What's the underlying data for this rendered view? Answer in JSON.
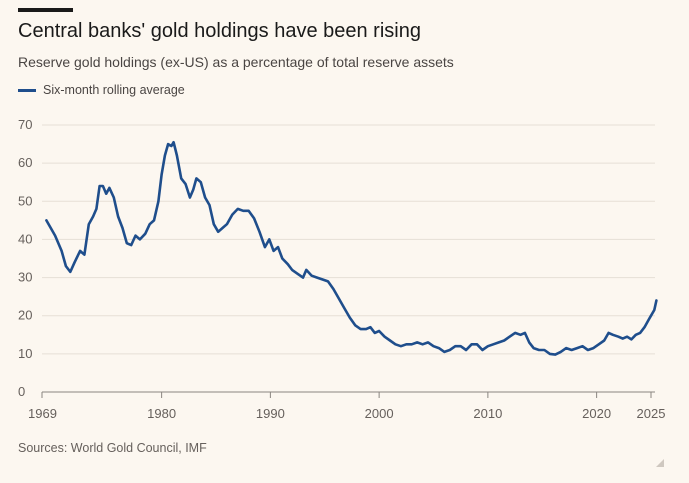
{
  "header": {
    "title": "Central banks' gold holdings have been rising",
    "subtitle": "Reserve gold holdings (ex-US) as a percentage of total reserve assets"
  },
  "legend": {
    "label": "Six-month rolling average",
    "color": "#1f4e8c"
  },
  "source": "Sources: World Gold Council, IMF",
  "chart_data": {
    "type": "line",
    "title": "Central banks' gold holdings have been rising",
    "subtitle": "Reserve gold holdings (ex-US) as a percentage of total reserve assets",
    "xlabel": "",
    "ylabel": "",
    "xlim": [
      1969,
      2025
    ],
    "ylim": [
      0,
      70
    ],
    "y_ticks": [
      0,
      10,
      20,
      30,
      40,
      50,
      60,
      70
    ],
    "x_ticks": [
      {
        "value": 1969,
        "label": "1969"
      },
      {
        "value": 1980,
        "label": "1980"
      },
      {
        "value": 1990,
        "label": "1990"
      },
      {
        "value": 2000,
        "label": "2000"
      },
      {
        "value": 2010,
        "label": "2010"
      },
      {
        "value": 2020,
        "label": "2020"
      },
      {
        "value": 2025,
        "label": "2025"
      }
    ],
    "grid": "horizontal",
    "legend_position": "top-left",
    "series": [
      {
        "name": "Six-month rolling average",
        "color": "#1f4e8c",
        "points": [
          [
            1969.4,
            45
          ],
          [
            1970.2,
            41
          ],
          [
            1970.8,
            37
          ],
          [
            1971.2,
            33
          ],
          [
            1971.6,
            31.5
          ],
          [
            1972.0,
            34
          ],
          [
            1972.5,
            37
          ],
          [
            1972.9,
            36
          ],
          [
            1973.3,
            44
          ],
          [
            1973.7,
            46
          ],
          [
            1974.0,
            48
          ],
          [
            1974.3,
            54
          ],
          [
            1974.6,
            54
          ],
          [
            1974.9,
            52
          ],
          [
            1975.2,
            53.5
          ],
          [
            1975.6,
            51
          ],
          [
            1976.0,
            46
          ],
          [
            1976.4,
            43
          ],
          [
            1976.8,
            39
          ],
          [
            1977.2,
            38.5
          ],
          [
            1977.6,
            41
          ],
          [
            1978.0,
            40
          ],
          [
            1978.5,
            41.5
          ],
          [
            1978.9,
            44
          ],
          [
            1979.3,
            45
          ],
          [
            1979.7,
            50
          ],
          [
            1980.0,
            57
          ],
          [
            1980.3,
            62
          ],
          [
            1980.6,
            65
          ],
          [
            1980.9,
            64.5
          ],
          [
            1981.1,
            65.5
          ],
          [
            1981.4,
            62
          ],
          [
            1981.8,
            56
          ],
          [
            1982.2,
            54.5
          ],
          [
            1982.6,
            51
          ],
          [
            1982.9,
            53
          ],
          [
            1983.2,
            56
          ],
          [
            1983.6,
            55
          ],
          [
            1984.0,
            51
          ],
          [
            1984.4,
            49
          ],
          [
            1984.8,
            44
          ],
          [
            1985.2,
            42
          ],
          [
            1985.6,
            43
          ],
          [
            1986.0,
            44
          ],
          [
            1986.5,
            46.5
          ],
          [
            1987.0,
            48
          ],
          [
            1987.5,
            47.5
          ],
          [
            1988.0,
            47.5
          ],
          [
            1988.5,
            45.5
          ],
          [
            1989.0,
            42
          ],
          [
            1989.5,
            38
          ],
          [
            1989.9,
            40
          ],
          [
            1990.3,
            37
          ],
          [
            1990.7,
            38
          ],
          [
            1991.1,
            35
          ],
          [
            1991.6,
            33.5
          ],
          [
            1992.0,
            32
          ],
          [
            1992.5,
            31
          ],
          [
            1993.0,
            30
          ],
          [
            1993.3,
            32
          ],
          [
            1993.8,
            30.5
          ],
          [
            1994.3,
            30
          ],
          [
            1994.8,
            29.5
          ],
          [
            1995.3,
            29
          ],
          [
            1995.8,
            27
          ],
          [
            1996.3,
            24.5
          ],
          [
            1996.8,
            22
          ],
          [
            1997.3,
            19.5
          ],
          [
            1997.8,
            17.5
          ],
          [
            1998.3,
            16.5
          ],
          [
            1998.8,
            16.5
          ],
          [
            1999.2,
            17
          ],
          [
            1999.6,
            15.5
          ],
          [
            2000.0,
            16
          ],
          [
            2000.5,
            14.5
          ],
          [
            2001.0,
            13.5
          ],
          [
            2001.5,
            12.5
          ],
          [
            2002.0,
            12
          ],
          [
            2002.5,
            12.5
          ],
          [
            2003.0,
            12.5
          ],
          [
            2003.5,
            13
          ],
          [
            2004.0,
            12.5
          ],
          [
            2004.5,
            13
          ],
          [
            2005.0,
            12
          ],
          [
            2005.5,
            11.5
          ],
          [
            2006.0,
            10.5
          ],
          [
            2006.5,
            11
          ],
          [
            2007.0,
            12
          ],
          [
            2007.5,
            12
          ],
          [
            2008.0,
            11
          ],
          [
            2008.5,
            12.5
          ],
          [
            2009.0,
            12.5
          ],
          [
            2009.5,
            11
          ],
          [
            2010.0,
            12
          ],
          [
            2010.5,
            12.5
          ],
          [
            2011.0,
            13
          ],
          [
            2011.5,
            13.5
          ],
          [
            2012.0,
            14.5
          ],
          [
            2012.5,
            15.5
          ],
          [
            2013.0,
            15
          ],
          [
            2013.4,
            15.5
          ],
          [
            2013.8,
            13
          ],
          [
            2014.2,
            11.5
          ],
          [
            2014.7,
            11
          ],
          [
            2015.2,
            11
          ],
          [
            2015.7,
            10
          ],
          [
            2016.2,
            9.8
          ],
          [
            2016.7,
            10.5
          ],
          [
            2017.2,
            11.5
          ],
          [
            2017.7,
            11
          ],
          [
            2018.2,
            11.5
          ],
          [
            2018.7,
            12
          ],
          [
            2019.2,
            11
          ],
          [
            2019.7,
            11.5
          ],
          [
            2020.2,
            12.5
          ],
          [
            2020.7,
            13.5
          ],
          [
            2021.1,
            15.5
          ],
          [
            2021.5,
            15
          ],
          [
            2022.0,
            14.5
          ],
          [
            2022.4,
            14
          ],
          [
            2022.8,
            14.5
          ],
          [
            2023.2,
            13.8
          ],
          [
            2023.6,
            15
          ],
          [
            2024.0,
            15.5
          ],
          [
            2024.4,
            17
          ],
          [
            2024.8,
            19
          ],
          [
            2025.0,
            20
          ],
          [
            2025.3,
            21.5
          ],
          [
            2025.5,
            24
          ]
        ]
      }
    ]
  }
}
